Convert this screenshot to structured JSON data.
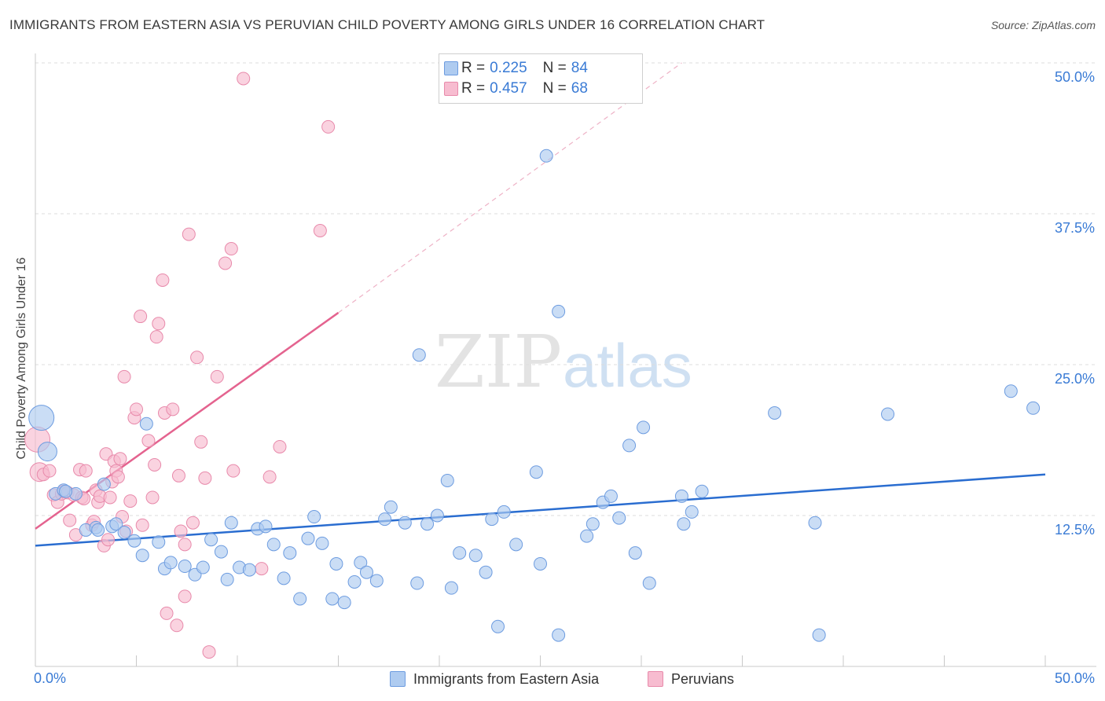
{
  "title": "IMMIGRANTS FROM EASTERN ASIA VS PERUVIAN CHILD POVERTY AMONG GIRLS UNDER 16 CORRELATION CHART",
  "source": "Source: ZipAtlas.com",
  "watermark": {
    "zip": "ZIP",
    "atlas": "atlas"
  },
  "legend": {
    "rows": [
      {
        "r_label": "R = ",
        "r_value": "0.225",
        "n_label": "N = ",
        "n_value": "84",
        "color": "#aecbf0"
      },
      {
        "r_label": "R = ",
        "r_value": "0.457",
        "n_label": "N = ",
        "n_value": "68",
        "color": "#f7bcd0"
      }
    ]
  },
  "bottom_legend": [
    {
      "label": "Immigrants from Eastern Asia",
      "color": "#aecbf0"
    },
    {
      "label": "Peruvians",
      "color": "#f7bcd0"
    }
  ],
  "colors": {
    "blue_fill": "#aecbf0",
    "blue_stroke": "#6d9ce0",
    "blue_line": "#2a6dd0",
    "pink_fill": "#f7bcd0",
    "pink_stroke": "#e88aab",
    "pink_line": "#e4638f",
    "tick_label": "#3a7bd5",
    "grid": "#dcdcdc"
  },
  "chart_data": {
    "type": "scatter",
    "title": "IMMIGRANTS FROM EASTERN ASIA VS PERUVIAN CHILD POVERTY AMONG GIRLS UNDER 16 CORRELATION CHART",
    "xlabel": "",
    "ylabel": "Child Poverty Among Girls Under 16",
    "xlim": [
      0,
      50
    ],
    "ylim": [
      0,
      50
    ],
    "x_tick_labels": [
      "0.0%",
      "50.0%"
    ],
    "y_ticks": [
      12.5,
      25.0,
      37.5,
      50.0
    ],
    "y_tick_labels": [
      "12.5%",
      "25.0%",
      "37.5%",
      "50.0%"
    ],
    "grid": true,
    "legend_position": "top-center",
    "series": [
      {
        "name": "Immigrants from Eastern Asia",
        "r": 0.225,
        "n": 84,
        "trend": {
          "x": [
            0,
            50
          ],
          "y": [
            10.0,
            15.9
          ],
          "dashed_extension": false
        },
        "points": [
          [
            0.3,
            20.6,
            3
          ],
          [
            0.6,
            17.8,
            2
          ],
          [
            1.0,
            14.3,
            1
          ],
          [
            1.4,
            14.6,
            1
          ],
          [
            2.0,
            14.3,
            1
          ],
          [
            2.5,
            11.3,
            1
          ],
          [
            3.0,
            11.5,
            1
          ],
          [
            3.4,
            15.1,
            1
          ],
          [
            3.8,
            11.6,
            1
          ],
          [
            4.0,
            11.8,
            1
          ],
          [
            4.4,
            11.1,
            1
          ],
          [
            4.9,
            10.4,
            1
          ],
          [
            5.3,
            9.2,
            1
          ],
          [
            5.5,
            20.1,
            1
          ],
          [
            6.1,
            10.3,
            1
          ],
          [
            6.4,
            8.1,
            1
          ],
          [
            6.7,
            8.6,
            1
          ],
          [
            7.4,
            8.3,
            1
          ],
          [
            7.9,
            7.6,
            1
          ],
          [
            8.3,
            8.2,
            1
          ],
          [
            8.7,
            10.5,
            1
          ],
          [
            9.2,
            9.5,
            1
          ],
          [
            9.5,
            7.2,
            1
          ],
          [
            9.7,
            11.9,
            1
          ],
          [
            10.1,
            8.2,
            1
          ],
          [
            10.6,
            8.0,
            1
          ],
          [
            11.0,
            11.4,
            1
          ],
          [
            11.4,
            11.6,
            1
          ],
          [
            11.8,
            10.1,
            1
          ],
          [
            12.3,
            7.3,
            1
          ],
          [
            12.6,
            9.4,
            1
          ],
          [
            13.1,
            5.6,
            1
          ],
          [
            13.5,
            10.6,
            1
          ],
          [
            13.8,
            12.4,
            1
          ],
          [
            14.2,
            10.2,
            1
          ],
          [
            14.7,
            5.6,
            1
          ],
          [
            14.9,
            8.5,
            1
          ],
          [
            15.3,
            5.3,
            1
          ],
          [
            15.8,
            7.0,
            1
          ],
          [
            16.1,
            8.6,
            1
          ],
          [
            16.4,
            7.8,
            1
          ],
          [
            16.9,
            7.1,
            1
          ],
          [
            17.3,
            12.2,
            1
          ],
          [
            17.6,
            13.2,
            1
          ],
          [
            18.3,
            11.9,
            1
          ],
          [
            18.9,
            6.9,
            1
          ],
          [
            19.0,
            25.8,
            1
          ],
          [
            19.4,
            11.8,
            1
          ],
          [
            19.9,
            12.5,
            1
          ],
          [
            20.4,
            15.4,
            1
          ],
          [
            20.6,
            6.5,
            1
          ],
          [
            21.0,
            9.4,
            1
          ],
          [
            21.8,
            9.2,
            1
          ],
          [
            22.3,
            7.8,
            1
          ],
          [
            22.6,
            12.2,
            1
          ],
          [
            22.9,
            3.3,
            1
          ],
          [
            23.2,
            12.8,
            1
          ],
          [
            23.8,
            10.1,
            1
          ],
          [
            24.8,
            16.1,
            1
          ],
          [
            25.0,
            8.5,
            1
          ],
          [
            25.3,
            42.3,
            1
          ],
          [
            25.9,
            2.6,
            1
          ],
          [
            25.9,
            29.4,
            1
          ],
          [
            27.3,
            10.8,
            1
          ],
          [
            27.6,
            11.8,
            1
          ],
          [
            28.1,
            13.6,
            1
          ],
          [
            28.5,
            14.1,
            1
          ],
          [
            28.9,
            12.3,
            1
          ],
          [
            29.4,
            18.3,
            1
          ],
          [
            29.7,
            9.4,
            1
          ],
          [
            30.1,
            19.8,
            1
          ],
          [
            30.4,
            6.9,
            1
          ],
          [
            32.0,
            14.1,
            1
          ],
          [
            32.1,
            11.8,
            1
          ],
          [
            32.5,
            12.8,
            1
          ],
          [
            33.0,
            14.5,
            1
          ],
          [
            36.6,
            21.0,
            1
          ],
          [
            38.6,
            11.9,
            1
          ],
          [
            38.8,
            2.6,
            1
          ],
          [
            42.2,
            20.9,
            1
          ],
          [
            48.3,
            22.8,
            1
          ],
          [
            49.4,
            21.4,
            1
          ],
          [
            1.5,
            14.5,
            1
          ],
          [
            3.1,
            11.3,
            1
          ]
        ]
      },
      {
        "name": "Peruvians",
        "r": 0.457,
        "n": 68,
        "trend": {
          "x": [
            0,
            15
          ],
          "y": [
            11.4,
            29.3
          ],
          "dashed_extension": true,
          "dashed_to": [
            32.0,
            50.0
          ]
        },
        "points": [
          [
            0.1,
            18.8,
            3
          ],
          [
            0.2,
            16.1,
            2
          ],
          [
            0.4,
            15.9,
            1
          ],
          [
            0.7,
            16.2,
            1
          ],
          [
            0.9,
            14.2,
            1
          ],
          [
            1.1,
            13.6,
            1
          ],
          [
            1.3,
            14.3,
            1
          ],
          [
            1.4,
            14.5,
            1
          ],
          [
            1.6,
            14.4,
            1
          ],
          [
            1.7,
            12.1,
            1
          ],
          [
            1.9,
            14.2,
            1
          ],
          [
            2.0,
            10.9,
            1
          ],
          [
            2.2,
            16.3,
            1
          ],
          [
            2.3,
            14.0,
            1
          ],
          [
            2.4,
            13.9,
            1
          ],
          [
            2.5,
            16.2,
            1
          ],
          [
            2.8,
            11.7,
            1
          ],
          [
            3.0,
            14.6,
            1
          ],
          [
            3.1,
            13.6,
            1
          ],
          [
            3.2,
            14.1,
            1
          ],
          [
            3.4,
            10.0,
            1
          ],
          [
            3.5,
            17.6,
            1
          ],
          [
            3.6,
            10.5,
            1
          ],
          [
            3.7,
            14.0,
            1
          ],
          [
            3.8,
            15.3,
            1
          ],
          [
            3.9,
            17.0,
            1
          ],
          [
            4.0,
            16.2,
            1
          ],
          [
            4.1,
            15.7,
            1
          ],
          [
            4.2,
            17.2,
            1
          ],
          [
            4.3,
            12.4,
            1
          ],
          [
            4.4,
            24.0,
            1
          ],
          [
            4.5,
            11.2,
            1
          ],
          [
            4.7,
            13.7,
            1
          ],
          [
            4.9,
            20.6,
            1
          ],
          [
            5.0,
            21.3,
            1
          ],
          [
            5.2,
            29.0,
            1
          ],
          [
            5.3,
            11.7,
            1
          ],
          [
            5.6,
            18.7,
            1
          ],
          [
            5.9,
            16.7,
            1
          ],
          [
            6.0,
            27.3,
            1
          ],
          [
            6.1,
            28.4,
            1
          ],
          [
            6.3,
            32.0,
            1
          ],
          [
            6.4,
            21.0,
            1
          ],
          [
            6.5,
            4.4,
            1
          ],
          [
            6.8,
            21.3,
            1
          ],
          [
            7.0,
            3.4,
            1
          ],
          [
            7.1,
            15.8,
            1
          ],
          [
            7.2,
            11.2,
            1
          ],
          [
            7.4,
            10.1,
            1
          ],
          [
            7.6,
            35.8,
            1
          ],
          [
            7.8,
            11.9,
            1
          ],
          [
            8.0,
            25.6,
            1
          ],
          [
            8.2,
            18.6,
            1
          ],
          [
            8.4,
            15.6,
            1
          ],
          [
            9.4,
            33.4,
            1
          ],
          [
            9.7,
            34.6,
            1
          ],
          [
            9.8,
            16.2,
            1
          ],
          [
            11.2,
            8.1,
            1
          ],
          [
            11.6,
            15.7,
            1
          ],
          [
            12.1,
            18.2,
            1
          ],
          [
            14.1,
            36.1,
            1
          ],
          [
            14.5,
            44.7,
            1
          ],
          [
            10.3,
            48.7,
            1
          ],
          [
            8.6,
            1.2,
            1
          ],
          [
            7.4,
            5.8,
            1
          ],
          [
            9.0,
            24.0,
            1
          ],
          [
            2.9,
            12.0,
            1
          ],
          [
            5.8,
            14.0,
            1
          ]
        ]
      }
    ]
  }
}
